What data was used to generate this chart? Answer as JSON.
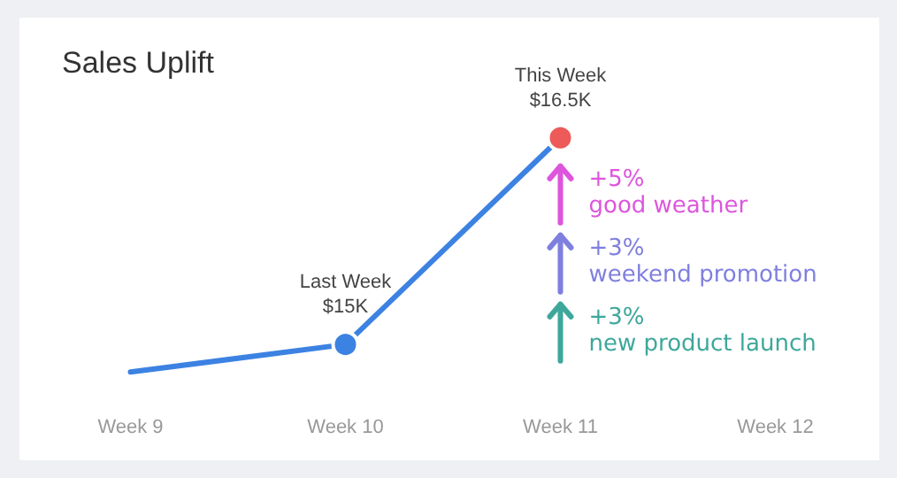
{
  "chart_data": {
    "type": "line",
    "title": "Sales Uplift",
    "categories": [
      "Week 9",
      "Week 10",
      "Week 11",
      "Week 12"
    ],
    "series": [
      {
        "color": "#3c82e2",
        "values": [
          14800,
          15000,
          16500,
          null
        ],
        "colors": [
          "#3c82e2",
          "#3c82e2",
          "#ee5a5a",
          null
        ],
        "value_labels": [
          null,
          "Last Week\n$15K",
          "This Week\n$16.5K",
          null
        ]
      }
    ],
    "marker": "circle",
    "line_style": "solid",
    "grid": false,
    "tick_labels": "x",
    "annotations": [
      "+5%\ngood weather",
      "+3%\nweekend promotion",
      "+3%\nnew product launch"
    ]
  }
}
